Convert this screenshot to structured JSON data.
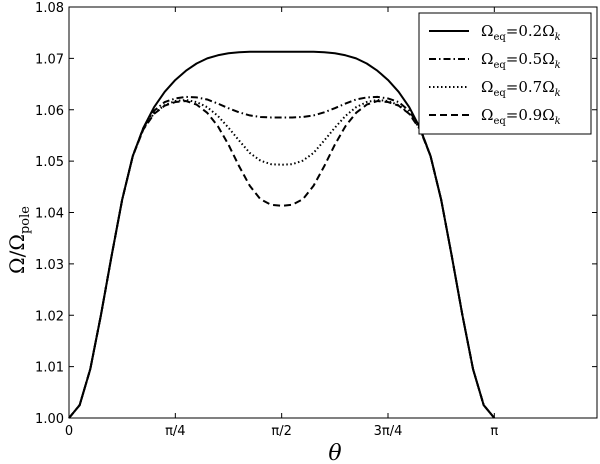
{
  "chart_data": {
    "type": "line",
    "title": "",
    "xlabel": "θ",
    "ylabel": {
      "main": "Ω/Ω",
      "sub": "pole"
    },
    "xlim": [
      0,
      3.9
    ],
    "ylim": [
      1.0,
      1.08
    ],
    "xticks": [
      {
        "value": 0,
        "label": "0"
      },
      {
        "value": 0.7854,
        "label": "π/4"
      },
      {
        "value": 1.5708,
        "label": "π/2"
      },
      {
        "value": 2.3562,
        "label": "3π/4"
      },
      {
        "value": 3.1416,
        "label": "π"
      }
    ],
    "yticks": [
      {
        "value": 1.0,
        "label": "1.00"
      },
      {
        "value": 1.01,
        "label": "1.01"
      },
      {
        "value": 1.02,
        "label": "1.02"
      },
      {
        "value": 1.03,
        "label": "1.03"
      },
      {
        "value": 1.04,
        "label": "1.04"
      },
      {
        "value": 1.05,
        "label": "1.05"
      },
      {
        "value": 1.06,
        "label": "1.06"
      },
      {
        "value": 1.07,
        "label": "1.07"
      },
      {
        "value": 1.08,
        "label": "1.08"
      }
    ],
    "grid": false,
    "legend_position": "top-right",
    "x": [
      0,
      0.0785,
      0.157,
      0.2356,
      0.3142,
      0.3927,
      0.4712,
      0.5498,
      0.6283,
      0.7069,
      0.7854,
      0.864,
      0.9425,
      1.021,
      1.0996,
      1.1781,
      1.2566,
      1.3352,
      1.4137,
      1.4923,
      1.5708,
      1.6493,
      1.7279,
      1.8064,
      1.885,
      1.9635,
      2.042,
      2.1206,
      2.1991,
      2.2777,
      2.3562,
      2.4347,
      2.5133,
      2.5918,
      2.6704,
      2.7489,
      2.8274,
      2.906,
      2.9845,
      3.0631,
      3.1416
    ],
    "series": [
      {
        "name_main": "Ω",
        "name_sub": "eq",
        "name_rest": "=0.2Ω",
        "name_sub2": "k",
        "dash": "solid",
        "values": [
          1.0,
          1.0025,
          1.0095,
          1.02,
          1.0315,
          1.0425,
          1.051,
          1.0565,
          1.0605,
          1.0635,
          1.0658,
          1.0676,
          1.069,
          1.07,
          1.0706,
          1.071,
          1.0712,
          1.0713,
          1.0713,
          1.0713,
          1.0713,
          1.0713,
          1.0713,
          1.0713,
          1.0712,
          1.071,
          1.0706,
          1.07,
          1.069,
          1.0676,
          1.0658,
          1.0635,
          1.0605,
          1.0565,
          1.051,
          1.0425,
          1.0315,
          1.02,
          1.0095,
          1.0025,
          1.0
        ]
      },
      {
        "name_main": "Ω",
        "name_sub": "eq",
        "name_rest": "=0.5Ω",
        "name_sub2": "k",
        "dash": "dashdot",
        "values": [
          1.0,
          1.0025,
          1.0095,
          1.02,
          1.0315,
          1.0425,
          1.051,
          1.0565,
          1.0598,
          1.0615,
          1.0622,
          1.0625,
          1.0624,
          1.062,
          1.0612,
          1.0603,
          1.0595,
          1.0589,
          1.0586,
          1.0585,
          1.0585,
          1.0585,
          1.0586,
          1.0589,
          1.0595,
          1.0603,
          1.0612,
          1.062,
          1.0624,
          1.0625,
          1.0622,
          1.0615,
          1.0598,
          1.0565,
          1.051,
          1.0425,
          1.0315,
          1.02,
          1.0095,
          1.0025,
          1.0
        ]
      },
      {
        "name_main": "Ω",
        "name_sub": "eq",
        "name_rest": "=0.7Ω",
        "name_sub2": "k",
        "dash": "dotted",
        "values": [
          1.0,
          1.0025,
          1.0095,
          1.02,
          1.0315,
          1.0425,
          1.051,
          1.0563,
          1.0593,
          1.0609,
          1.0617,
          1.0619,
          1.0615,
          1.0605,
          1.0588,
          1.0565,
          1.054,
          1.0516,
          1.0501,
          1.0494,
          1.0493,
          1.0494,
          1.0501,
          1.0516,
          1.054,
          1.0565,
          1.0588,
          1.0605,
          1.0615,
          1.0619,
          1.0617,
          1.0609,
          1.0593,
          1.0563,
          1.051,
          1.0425,
          1.0315,
          1.02,
          1.0095,
          1.0025,
          1.0
        ]
      },
      {
        "name_main": "Ω",
        "name_sub": "eq",
        "name_rest": "=0.9Ω",
        "name_sub2": "k",
        "dash": "dashed",
        "values": [
          1.0,
          1.0025,
          1.0095,
          1.02,
          1.0315,
          1.0425,
          1.051,
          1.0562,
          1.0592,
          1.0608,
          1.0615,
          1.0617,
          1.061,
          1.0594,
          1.0568,
          1.0532,
          1.049,
          1.0452,
          1.0426,
          1.0415,
          1.0413,
          1.0415,
          1.0426,
          1.0452,
          1.049,
          1.0532,
          1.0568,
          1.0594,
          1.061,
          1.0617,
          1.0615,
          1.0608,
          1.0592,
          1.0562,
          1.051,
          1.0425,
          1.0315,
          1.02,
          1.0095,
          1.0025,
          1.0
        ]
      }
    ]
  }
}
